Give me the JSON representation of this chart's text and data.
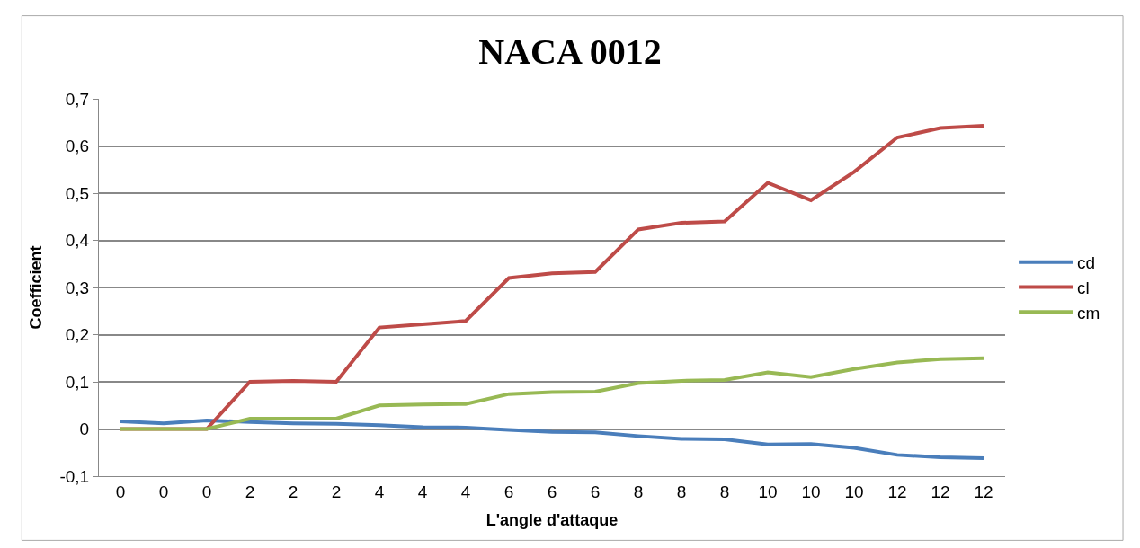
{
  "chart_data": {
    "type": "line",
    "title": "NACA 0012",
    "xlabel": "L'angle d'attaque",
    "ylabel": "Coefficient",
    "categories": [
      "0",
      "0",
      "0",
      "2",
      "2",
      "2",
      "4",
      "4",
      "4",
      "6",
      "6",
      "6",
      "8",
      "8",
      "8",
      "10",
      "10",
      "10",
      "12",
      "12",
      "12"
    ],
    "series": [
      {
        "name": "cd",
        "color": "#4a7ebb",
        "values": [
          0.016,
          0.012,
          0.018,
          0.015,
          0.012,
          0.011,
          0.008,
          0.004,
          0.003,
          -0.002,
          -0.006,
          -0.007,
          -0.015,
          -0.021,
          -0.022,
          -0.033,
          -0.032,
          -0.04,
          -0.055,
          -0.06,
          -0.062
        ]
      },
      {
        "name": "cl",
        "color": "#be4b48",
        "values": [
          0,
          0,
          0,
          0.1,
          0.102,
          0.1,
          0.215,
          0.222,
          0.229,
          0.32,
          0.33,
          0.333,
          0.423,
          0.437,
          0.44,
          0.522,
          0.485,
          0.545,
          0.618,
          0.638,
          0.643
        ]
      },
      {
        "name": "cm",
        "color": "#98b954",
        "values": [
          0,
          0,
          0,
          0.022,
          0.022,
          0.022,
          0.05,
          0.052,
          0.053,
          0.074,
          0.078,
          0.079,
          0.097,
          0.102,
          0.104,
          0.12,
          0.11,
          0.127,
          0.141,
          0.148,
          0.15
        ]
      }
    ],
    "ylim": [
      -0.1,
      0.7
    ],
    "yticks": [
      {
        "value": -0.1,
        "label": "-0,1"
      },
      0,
      {
        "value": 0.1,
        "label": "0,1"
      },
      {
        "value": 0.2,
        "label": "0,2"
      },
      {
        "value": 0.3,
        "label": "0,3"
      },
      {
        "value": 0.4,
        "label": "0,4"
      },
      {
        "value": 0.5,
        "label": "0,5"
      },
      {
        "value": 0.6,
        "label": "0,6"
      },
      {
        "value": 0.7,
        "label": "0,7"
      }
    ],
    "grid": "y",
    "legend": "right",
    "marker": "none",
    "line_style": "solid"
  }
}
